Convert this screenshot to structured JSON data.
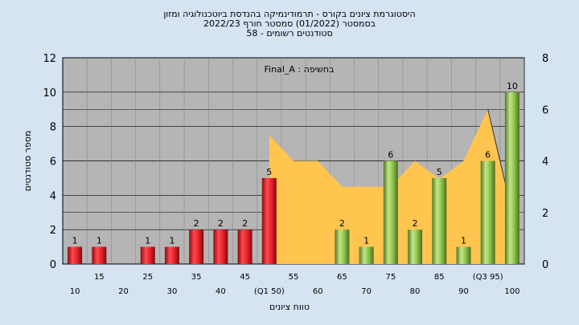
{
  "header": {
    "line1": "היסטוגרמת ציונים בקורס - תרמודינמיקה בהנדסת ביוטכנולוגיה ומזון",
    "line2": "בסמסטר  (01/2022)  סמסטר חורף  2022/23",
    "line3": "58 - סטודנטים רשומים"
  },
  "chart_data": {
    "type": "bar",
    "annotation": "Final_A : בחשיפה",
    "xlabel": "טווח ציונים",
    "ylabel": "מספר סטודנטים",
    "ylim": [
      0,
      12
    ],
    "y_ticks": [
      0,
      2,
      4,
      6,
      8,
      10,
      12
    ],
    "y2lim": [
      0,
      8
    ],
    "y2_ticks": [
      0,
      2,
      4,
      6,
      8
    ],
    "grid": true,
    "legend": "none",
    "x_tick_labels": [
      {
        "slot": 0,
        "text": "10",
        "row": "lower"
      },
      {
        "slot": 1,
        "text": "15",
        "row": "upper"
      },
      {
        "slot": 2,
        "text": "20",
        "row": "lower"
      },
      {
        "slot": 3,
        "text": "25",
        "row": "upper"
      },
      {
        "slot": 4,
        "text": "30",
        "row": "lower"
      },
      {
        "slot": 5,
        "text": "35",
        "row": "upper"
      },
      {
        "slot": 6,
        "text": "40",
        "row": "lower"
      },
      {
        "slot": 7,
        "text": "45",
        "row": "upper"
      },
      {
        "slot": 8,
        "text": "(Q1 50)",
        "row": "lower"
      },
      {
        "slot": 9,
        "text": "55",
        "row": "upper"
      },
      {
        "slot": 10,
        "text": "60",
        "row": "lower"
      },
      {
        "slot": 11,
        "text": "65",
        "row": "upper"
      },
      {
        "slot": 12,
        "text": "70",
        "row": "lower"
      },
      {
        "slot": 13,
        "text": "75",
        "row": "upper"
      },
      {
        "slot": 14,
        "text": "80",
        "row": "lower"
      },
      {
        "slot": 15,
        "text": "85",
        "row": "upper"
      },
      {
        "slot": 16,
        "text": "90",
        "row": "lower"
      },
      {
        "slot": 17,
        "text": "(Q3 95)",
        "row": "upper"
      },
      {
        "slot": 18,
        "text": "100",
        "row": "lower"
      }
    ],
    "bars": [
      {
        "slot": 0,
        "value": 1,
        "label": "1",
        "color": "red"
      },
      {
        "slot": 1,
        "value": 1,
        "label": "1",
        "color": "red"
      },
      {
        "slot": 3,
        "value": 1,
        "label": "1",
        "color": "red"
      },
      {
        "slot": 4,
        "value": 1,
        "label": "1",
        "color": "red"
      },
      {
        "slot": 5,
        "value": 2,
        "label": "2",
        "color": "red"
      },
      {
        "slot": 6,
        "value": 2,
        "label": "2",
        "color": "red"
      },
      {
        "slot": 7,
        "value": 2,
        "label": "2",
        "color": "red"
      },
      {
        "slot": 8,
        "value": 5,
        "label": "5",
        "color": "red"
      },
      {
        "slot": 11,
        "value": 2,
        "label": "2",
        "color": "green"
      },
      {
        "slot": 12,
        "value": 1,
        "label": "1",
        "color": "green"
      },
      {
        "slot": 13,
        "value": 6,
        "label": "6",
        "color": "green"
      },
      {
        "slot": 14,
        "value": 2,
        "label": "2",
        "color": "green"
      },
      {
        "slot": 15,
        "value": 5,
        "label": "5",
        "color": "green"
      },
      {
        "slot": 16,
        "value": 1,
        "label": "1",
        "color": "green"
      },
      {
        "slot": 17,
        "value": 6,
        "label": "6",
        "color": "green"
      },
      {
        "slot": 18,
        "value": 10,
        "label": "10",
        "color": "green"
      }
    ],
    "area_secondary": [
      {
        "slot": 8,
        "value": 5
      },
      {
        "slot": 9,
        "value": 4
      },
      {
        "slot": 10,
        "value": 4
      },
      {
        "slot": 11,
        "value": 3
      },
      {
        "slot": 12,
        "value": 3
      },
      {
        "slot": 13,
        "value": 3
      },
      {
        "slot": 14,
        "value": 4
      },
      {
        "slot": 15,
        "value": 3.3
      },
      {
        "slot": 16,
        "value": 4
      },
      {
        "slot": 17,
        "value": 6
      },
      {
        "slot": 18,
        "value": 2
      }
    ],
    "colors": {
      "plot_bg": "#b5b5b5",
      "page_bg": "#d6e3f3",
      "area": "#ffc54f",
      "red": "#e8222c",
      "green": "#8cc24a"
    }
  }
}
